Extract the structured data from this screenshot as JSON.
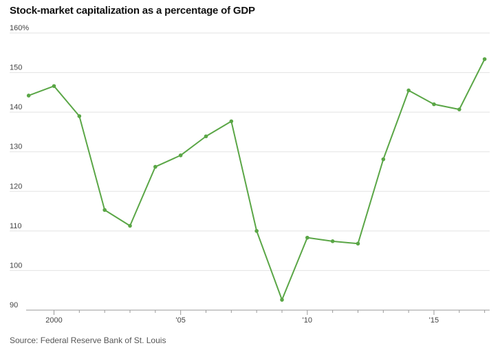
{
  "chart_data": {
    "type": "line",
    "title": "Stock-market capitalization as a percentage of GDP",
    "source": "Source: Federal Reserve Bank of St. Louis",
    "x": [
      1999,
      2000,
      2001,
      2002,
      2003,
      2004,
      2005,
      2006,
      2007,
      2008,
      2009,
      2010,
      2011,
      2012,
      2013,
      2014,
      2015,
      2016,
      2017
    ],
    "series": [
      {
        "name": "Stock-market capitalization as a percentage of GDP",
        "values": [
          144.2,
          146.6,
          139.0,
          115.3,
          111.3,
          126.2,
          129.1,
          133.9,
          137.7,
          110.0,
          92.6,
          108.3,
          107.4,
          106.8,
          128.1,
          145.5,
          142.0,
          140.7,
          153.4
        ],
        "color": "#5aa646"
      }
    ],
    "ylim": [
      90,
      160
    ],
    "yticks": [
      {
        "value": 160,
        "label": "160%"
      },
      {
        "value": 150,
        "label": "150"
      },
      {
        "value": 140,
        "label": "140"
      },
      {
        "value": 130,
        "label": "130"
      },
      {
        "value": 120,
        "label": "120"
      },
      {
        "value": 110,
        "label": "110"
      },
      {
        "value": 100,
        "label": "100"
      },
      {
        "value": 90,
        "label": "90"
      }
    ],
    "xticks": [
      {
        "value": 2000,
        "label": "2000"
      },
      {
        "value": 2005,
        "label": "'05"
      },
      {
        "value": 2010,
        "label": "'10"
      },
      {
        "value": 2015,
        "label": "'15"
      }
    ],
    "xminor": [
      2001,
      2002,
      2003,
      2004,
      2006,
      2007,
      2008,
      2009,
      2011,
      2012,
      2013,
      2014,
      2016,
      2017
    ],
    "xlim": [
      1998.9,
      2017.2
    ],
    "xlabel": "",
    "ylabel": "",
    "grid": true
  }
}
